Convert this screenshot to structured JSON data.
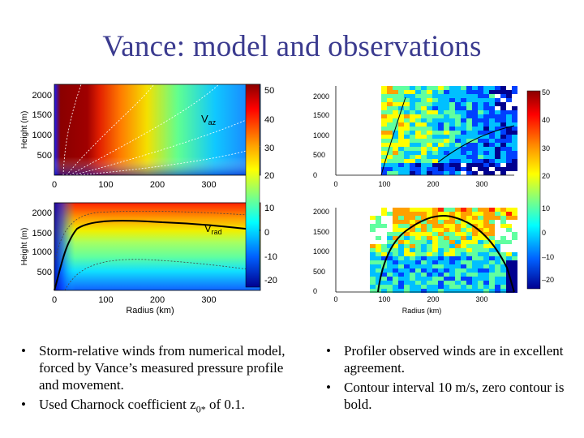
{
  "title": "Vance: model and observations",
  "bullets_left": [
    {
      "text": "Storm-relative winds from numerical model, forced by Vance’s measured pressure profile and movement.",
      "sub": "",
      "tail": ""
    },
    {
      "text": "Used Charnock coefficient z",
      "sub": "0*",
      "tail": " of 0.1."
    }
  ],
  "bullets_right": [
    {
      "text": "Profiler observed winds are in excellent agreement.",
      "sub": "",
      "tail": ""
    },
    {
      "text": "Contour interval 10 m/s, zero contour is bold.",
      "sub": "",
      "tail": ""
    }
  ],
  "chart_data": [
    {
      "type": "heatmap",
      "name": "model-vaz",
      "annotation": "V",
      "annotation_sub": "az",
      "ylabel": "Height (m)",
      "xlabel": "",
      "xticks": [
        "0",
        "100",
        "200",
        "300"
      ],
      "yticks": [
        "500",
        "1000",
        "1500",
        "2000"
      ],
      "xlim": [
        0,
        400
      ],
      "ylim": [
        0,
        2400
      ]
    },
    {
      "type": "heatmap",
      "name": "model-vrad",
      "annotation": "V",
      "annotation_sub": "rad",
      "ylabel": "Height (m)",
      "xlabel": "Radius (km)",
      "xticks": [
        "0",
        "100",
        "200",
        "300"
      ],
      "yticks": [
        "500",
        "1000",
        "1500",
        "2000"
      ],
      "xlim": [
        0,
        400
      ],
      "ylim": [
        0,
        2400
      ]
    },
    {
      "type": "heatmap",
      "name": "observed-vaz",
      "xlabel": "",
      "xticks": [
        "0",
        "100",
        "200",
        "300"
      ],
      "yticks": [
        "0",
        "500",
        "1000",
        "1500",
        "2000"
      ],
      "xlim": [
        0,
        400
      ],
      "ylim": [
        0,
        2400
      ]
    },
    {
      "type": "heatmap",
      "name": "observed-vrad",
      "xlabel": "Radius (km)",
      "xticks": [
        "0",
        "100",
        "200",
        "300"
      ],
      "yticks": [
        "0",
        "500",
        "1000",
        "1500",
        "2000"
      ],
      "xlim": [
        0,
        400
      ],
      "ylim": [
        0,
        2400
      ]
    }
  ],
  "colorbars": {
    "left_top": [
      "50",
      "40",
      "30",
      "20"
    ],
    "left_bottom": [
      "10",
      "0",
      "-10",
      "-20"
    ],
    "right_top": [
      "50",
      "40",
      "30",
      "20"
    ],
    "right_bottom": [
      "10",
      "0",
      "–10",
      "–20"
    ]
  }
}
